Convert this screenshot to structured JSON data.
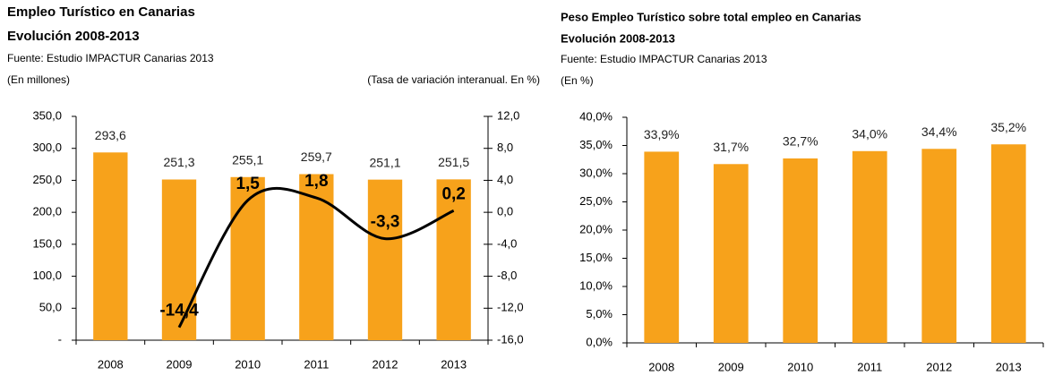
{
  "chart_data": [
    {
      "type": "bar",
      "title": "Empleo Turístico en Canarias",
      "subtitle": "Evolución 2008-2013",
      "source": "Fuente: Estudio IMPACTUR Canarias 2013",
      "y_label": "(En millones)",
      "y2_label": "(Tasa de variación interanual. En %)",
      "categories": [
        "2008",
        "2009",
        "2010",
        "2011",
        "2012",
        "2013"
      ],
      "series": [
        {
          "color": "#f7a21b",
          "values": [
            293.6,
            251.3,
            255.1,
            259.7,
            251.1,
            251.5
          ],
          "value_labels": [
            "293,6",
            "251,3",
            "255,1",
            "259,7",
            "251,1",
            "251,5"
          ]
        },
        {
          "type": "line",
          "axis": "y2",
          "color": "#000000",
          "values": [
            null,
            -14.4,
            1.5,
            1.8,
            -3.3,
            0.2
          ],
          "value_labels": [
            null,
            "-14,4",
            "1,5",
            "1,8",
            "-3,3",
            "0,2"
          ]
        }
      ],
      "ylim": [
        0,
        350
      ],
      "yticks": [
        {
          "value": 0,
          "label": "-"
        },
        {
          "value": 50,
          "label": "50,0"
        },
        {
          "value": 100,
          "label": "100,0"
        },
        {
          "value": 150,
          "label": "150,0"
        },
        {
          "value": 200,
          "label": "200,0"
        },
        {
          "value": 250,
          "label": "250,0"
        },
        {
          "value": 300,
          "label": "300,0"
        },
        {
          "value": 350,
          "label": "350,0"
        }
      ],
      "y2lim": [
        -16,
        12
      ],
      "y2ticks": [
        {
          "value": -16,
          "label": "-16,0"
        },
        {
          "value": -12,
          "label": "-12,0"
        },
        {
          "value": -8,
          "label": "-8,0"
        },
        {
          "value": -4,
          "label": "-4,0"
        },
        {
          "value": 0,
          "label": "0,0"
        },
        {
          "value": 4,
          "label": "4,0"
        },
        {
          "value": 8,
          "label": "8,0"
        },
        {
          "value": 12,
          "label": "12,0"
        }
      ]
    },
    {
      "type": "bar",
      "title": "Peso Empleo Turístico sobre total empleo en Canarias",
      "subtitle": "Evolución 2008-2013",
      "source": "Fuente: Estudio IMPACTUR Canarias 2013",
      "y_label": "(En %)",
      "categories": [
        "2008",
        "2009",
        "2010",
        "2011",
        "2012",
        "2013"
      ],
      "series": [
        {
          "color": "#f7a21b",
          "values": [
            33.9,
            31.7,
            32.7,
            34.0,
            34.4,
            35.2
          ],
          "value_labels": [
            "33,9%",
            "31,7%",
            "32,7%",
            "34,0%",
            "34,4%",
            "35,2%"
          ]
        }
      ],
      "ylim": [
        0,
        40
      ],
      "yticks": [
        {
          "value": 0,
          "label": "0,0%"
        },
        {
          "value": 5,
          "label": "5,0%"
        },
        {
          "value": 10,
          "label": "10,0%"
        },
        {
          "value": 15,
          "label": "15,0%"
        },
        {
          "value": 20,
          "label": "20,0%"
        },
        {
          "value": 25,
          "label": "25,0%"
        },
        {
          "value": 30,
          "label": "30,0%"
        },
        {
          "value": 35,
          "label": "35,0%"
        },
        {
          "value": 40,
          "label": "40,0%"
        }
      ]
    }
  ]
}
